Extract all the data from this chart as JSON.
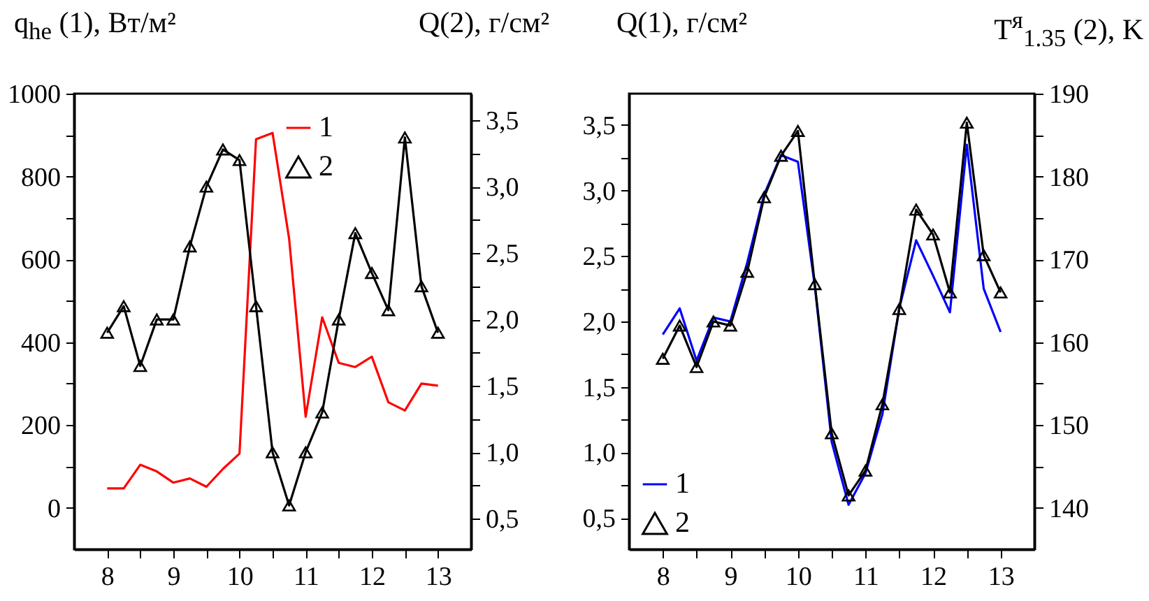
{
  "chart_data": [
    {
      "type": "line",
      "ylabel": "q$_{he}$ (1), Вт/м²",
      "y2label": "Q(2), г/см²",
      "legend": "top right",
      "xlim": [
        7.5,
        13.5
      ],
      "xticks": [
        8,
        {
          "value": 8.5,
          "label": null
        },
        9,
        {
          "value": 9.5,
          "label": null
        },
        10,
        {
          "value": 10.5,
          "label": null
        },
        11,
        {
          "value": 11.5,
          "label": null
        },
        12,
        {
          "value": 12.5,
          "label": null
        },
        13
      ],
      "ylim": [
        -100,
        1000
      ],
      "yticks": [
        0,
        {
          "value": 100,
          "label": null
        },
        200,
        {
          "value": 300,
          "label": null
        },
        400,
        {
          "value": 500,
          "label": null
        },
        600,
        {
          "value": 700,
          "label": null
        },
        800,
        {
          "value": 900,
          "label": null
        },
        1000
      ],
      "y2lim": [
        0.27,
        3.7
      ],
      "y2ticks": [
        {
          "value": 0.5,
          "label": "0,5"
        },
        {
          "value": 0.75,
          "label": null
        },
        {
          "value": 1.0,
          "label": "1,0"
        },
        {
          "value": 1.25,
          "label": null
        },
        {
          "value": 1.5,
          "label": "1,5"
        },
        {
          "value": 1.75,
          "label": null
        },
        {
          "value": 2.0,
          "label": "2,0"
        },
        {
          "value": 2.25,
          "label": null
        },
        {
          "value": 2.5,
          "label": "2,5"
        },
        {
          "value": 2.75,
          "label": null
        },
        {
          "value": 3.0,
          "label": "3,0"
        },
        {
          "value": 3.25,
          "label": null
        },
        {
          "value": 3.5,
          "label": "3,5"
        }
      ],
      "x": [
        8,
        8.25,
        8.5,
        8.75,
        9,
        9.25,
        9.5,
        9.75,
        10,
        10.25,
        10.5,
        10.75,
        11,
        11.25,
        11.5,
        11.75,
        12,
        12.25,
        12.5,
        12.75,
        13
      ],
      "series": [
        {
          "name": "1",
          "color": "#ff0000",
          "values": [
            47,
            47,
            104,
            88,
            61,
            71,
            51,
            94,
            131,
            890,
            905,
            650,
            220,
            460,
            350,
            340,
            365,
            255,
            235,
            300,
            295
          ]
        },
        {
          "name": "2",
          "color": "#000000",
          "marker": "triangle",
          "axis": "y2",
          "values": [
            1.9,
            2.1,
            1.65,
            2.0,
            2.0,
            2.55,
            3.0,
            3.28,
            3.2,
            2.1,
            1.0,
            0.6,
            1.0,
            1.3,
            2.0,
            2.65,
            2.35,
            2.07,
            3.37,
            2.25,
            1.9
          ]
        }
      ]
    },
    {
      "type": "line",
      "ylabel": "Q(1), г/см²",
      "y2label": "T$^{я}$$_{1.35}$ (2), K",
      "legend": "bottom left",
      "xlim": [
        7.5,
        13.5
      ],
      "xticks": [
        8,
        {
          "value": 8.5,
          "label": null
        },
        9,
        {
          "value": 9.5,
          "label": null
        },
        10,
        {
          "value": 10.5,
          "label": null
        },
        11,
        {
          "value": 11.5,
          "label": null
        },
        12,
        {
          "value": 12.5,
          "label": null
        },
        13
      ],
      "ylim": [
        0.26,
        3.74
      ],
      "yticks": [
        {
          "value": 0.5,
          "label": "0,5"
        },
        {
          "value": 0.75,
          "label": null
        },
        {
          "value": 1.0,
          "label": "1,0"
        },
        {
          "value": 1.25,
          "label": null
        },
        {
          "value": 1.5,
          "label": "1,5"
        },
        {
          "value": 1.75,
          "label": null
        },
        {
          "value": 2.0,
          "label": "2,0"
        },
        {
          "value": 2.25,
          "label": null
        },
        {
          "value": 2.5,
          "label": "2,5"
        },
        {
          "value": 2.75,
          "label": null
        },
        {
          "value": 3.0,
          "label": "3,0"
        },
        {
          "value": 3.25,
          "label": null
        },
        {
          "value": 3.5,
          "label": "3,5"
        }
      ],
      "y2lim": [
        135,
        190
      ],
      "y2ticks": [
        140,
        {
          "value": 145,
          "label": null
        },
        150,
        {
          "value": 155,
          "label": null
        },
        160,
        {
          "value": 165,
          "label": null
        },
        170,
        {
          "value": 175,
          "label": null
        },
        180,
        {
          "value": 185,
          "label": null
        },
        190
      ],
      "x": [
        8,
        8.25,
        8.5,
        8.75,
        9,
        9.25,
        9.5,
        9.75,
        10,
        10.25,
        10.5,
        10.75,
        11,
        11.25,
        11.5,
        11.75,
        12,
        12.25,
        12.5,
        12.75,
        13
      ],
      "series": [
        {
          "name": "1",
          "color": "#0000ff",
          "values": [
            1.9,
            2.1,
            1.7,
            2.03,
            2.0,
            2.45,
            2.97,
            3.27,
            3.22,
            2.27,
            1.08,
            0.6,
            0.84,
            1.29,
            2.1,
            2.62,
            2.35,
            2.07,
            3.35,
            2.25,
            1.92
          ]
        },
        {
          "name": "2",
          "color": "#000000",
          "marker": "triangle",
          "axis": "y2",
          "values": [
            158,
            162,
            157,
            162.5,
            162,
            168.5,
            177.5,
            182.5,
            185.5,
            167,
            149,
            141.5,
            144.5,
            152.5,
            164,
            176,
            173,
            166,
            186.5,
            170.5,
            166
          ]
        }
      ]
    }
  ]
}
